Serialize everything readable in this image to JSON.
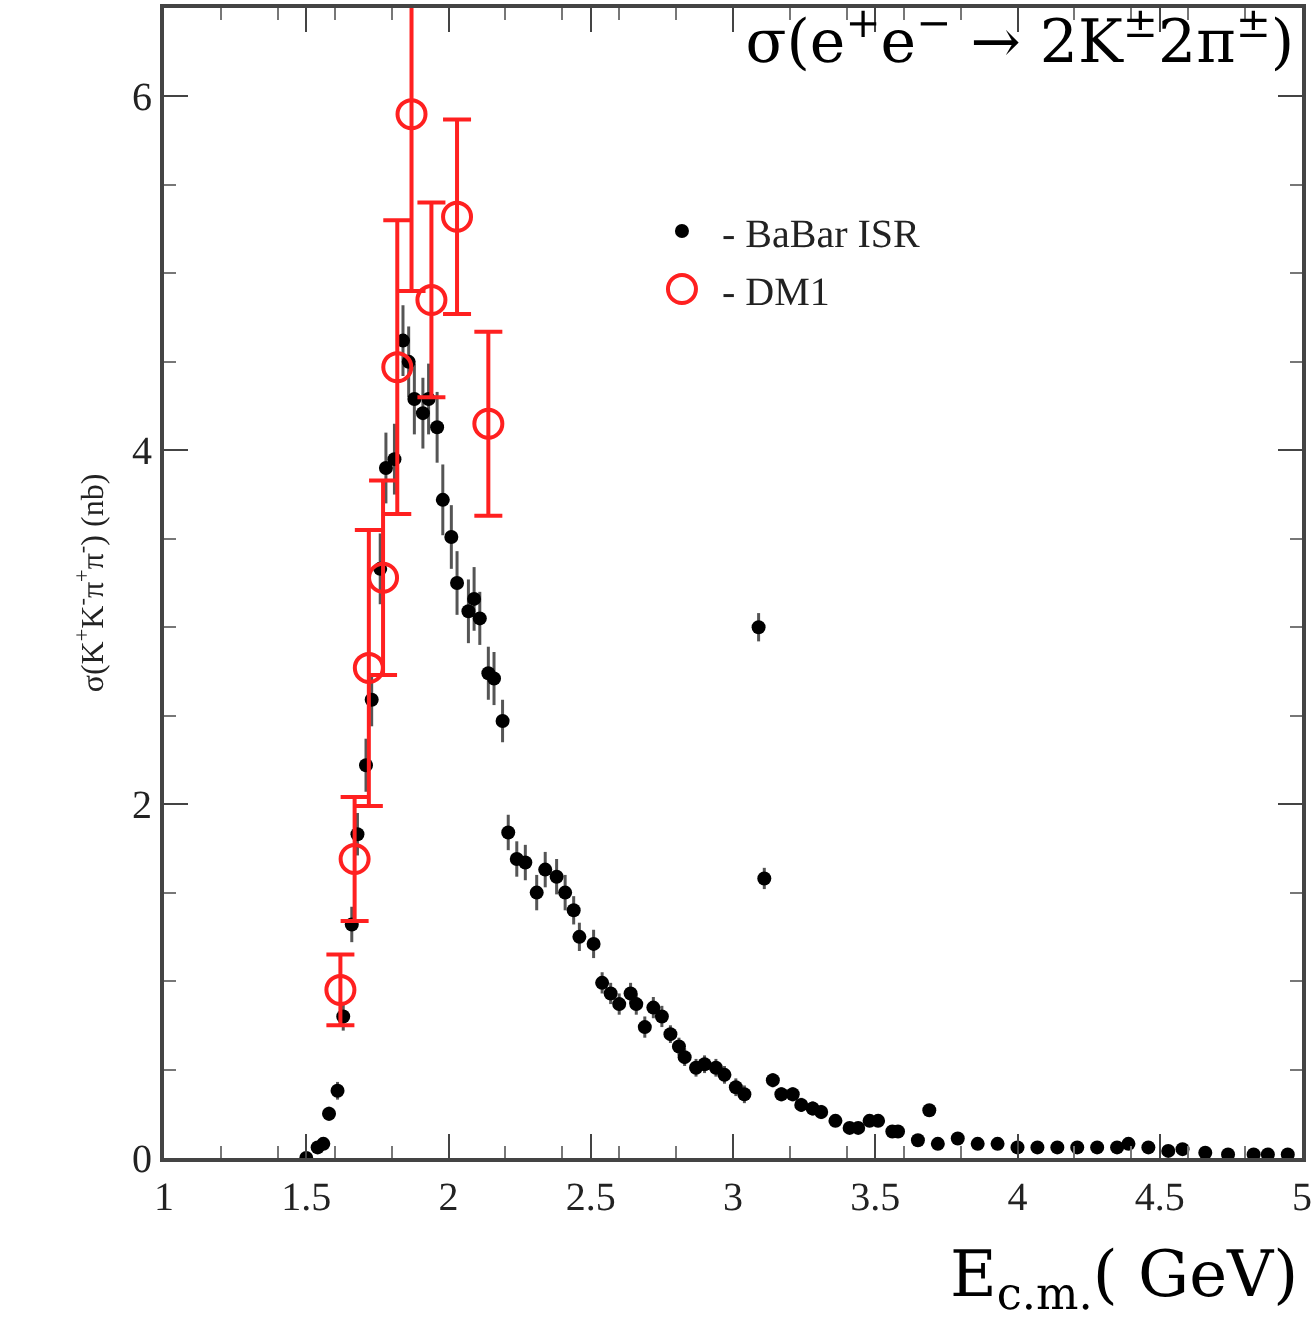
{
  "chart_data": {
    "type": "scatter",
    "title": "σ(e$^{+}$e$^{−}$ → 2K$^{±}$2π$^{±}$)",
    "xlabel": "E$_{c.m.}$( GeV)",
    "ylabel": "σ(K$^{+}$K$^{-}$π$^{+}$π$^{-}$) (nb)",
    "xlim": [
      1,
      5
    ],
    "xticks": [
      1,
      1.5,
      2,
      2.5,
      3,
      3.5,
      4,
      4.5,
      5
    ],
    "ylim": [
      0,
      6.5
    ],
    "yticks": [
      0,
      2,
      4,
      6
    ],
    "grid": false,
    "legend": "top right",
    "marker": "circle",
    "series": [
      {
        "name": "- BaBar ISR",
        "color": "#000000",
        "x": [
          1.5,
          1.54,
          1.56,
          1.58,
          1.61,
          1.63,
          1.66,
          1.68,
          1.71,
          1.73,
          1.76,
          1.78,
          1.81,
          1.84,
          1.86,
          1.88,
          1.91,
          1.93,
          1.96,
          1.98,
          2.01,
          2.03,
          2.07,
          2.09,
          2.11,
          2.14,
          2.16,
          2.19,
          2.21,
          2.24,
          2.27,
          2.31,
          2.34,
          2.38,
          2.41,
          2.44,
          2.46,
          2.51,
          2.54,
          2.57,
          2.6,
          2.64,
          2.66,
          2.69,
          2.72,
          2.75,
          2.78,
          2.81,
          2.83,
          2.87,
          2.9,
          2.94,
          2.97,
          3.01,
          3.04,
          3.09,
          3.11,
          3.14,
          3.17,
          3.21,
          3.24,
          3.28,
          3.31,
          3.36,
          3.41,
          3.44,
          3.48,
          3.51,
          3.56,
          3.58,
          3.65,
          3.69,
          3.72,
          3.79,
          3.86,
          3.93,
          4.0,
          4.07,
          4.14,
          4.21,
          4.28,
          4.35,
          4.39,
          4.46,
          4.53,
          4.58,
          4.66,
          4.74,
          4.83,
          4.88,
          4.95
        ],
        "values": [
          0,
          0.06,
          0.08,
          0.25,
          0.38,
          0.8,
          1.32,
          1.83,
          2.22,
          2.59,
          3.33,
          3.9,
          3.95,
          4.62,
          4.5,
          4.29,
          4.21,
          4.29,
          4.13,
          3.72,
          3.51,
          3.25,
          3.09,
          3.16,
          3.05,
          2.74,
          2.71,
          2.47,
          1.84,
          1.69,
          1.67,
          1.5,
          1.63,
          1.59,
          1.5,
          1.4,
          1.25,
          1.21,
          0.99,
          0.93,
          0.87,
          0.93,
          0.87,
          0.74,
          0.85,
          0.8,
          0.7,
          0.63,
          0.57,
          0.51,
          0.53,
          0.51,
          0.47,
          0.4,
          0.36,
          3.0,
          1.58,
          0.44,
          0.36,
          0.36,
          0.3,
          0.28,
          0.26,
          0.21,
          0.17,
          0.17,
          0.21,
          0.21,
          0.15,
          0.15,
          0.1,
          0.27,
          0.08,
          0.11,
          0.08,
          0.08,
          0.06,
          0.06,
          0.06,
          0.06,
          0.06,
          0.06,
          0.08,
          0.06,
          0.04,
          0.05,
          0.03,
          0.02,
          0.02,
          0.02,
          0.02
        ],
        "errors": [
          null,
          null,
          null,
          0.04,
          0.05,
          0.08,
          0.1,
          0.12,
          0.15,
          0.15,
          0.2,
          0.2,
          0.2,
          0.2,
          0.2,
          0.2,
          0.2,
          0.2,
          0.2,
          0.2,
          0.18,
          0.18,
          0.18,
          0.18,
          0.15,
          0.15,
          0.15,
          0.12,
          0.1,
          0.1,
          0.1,
          0.1,
          0.1,
          0.1,
          0.1,
          0.08,
          0.08,
          0.08,
          0.06,
          0.06,
          0.06,
          0.06,
          0.06,
          0.06,
          0.06,
          0.06,
          0.05,
          0.05,
          0.05,
          0.05,
          0.05,
          0.05,
          0.05,
          0.05,
          0.05,
          0.08,
          0.06,
          0.04,
          0.04,
          0.04,
          0.04,
          0.04,
          0.04,
          0.03,
          0.03,
          0.03,
          0.03,
          0.03,
          0.03,
          0.03,
          0.03,
          0.03,
          null,
          null,
          null,
          null,
          null,
          null,
          null,
          null,
          null,
          null,
          null,
          null,
          null,
          null,
          null,
          null,
          null,
          null,
          null
        ]
      },
      {
        "name": "- DM1",
        "color": "#ff2020",
        "x": [
          1.62,
          1.67,
          1.72,
          1.77,
          1.82,
          1.87,
          1.94,
          2.03,
          2.14
        ],
        "values": [
          0.95,
          1.69,
          2.77,
          3.28,
          4.47,
          5.9,
          4.85,
          5.32,
          4.15
        ],
        "errors": [
          0.2,
          0.35,
          0.78,
          0.55,
          0.83,
          1.0,
          0.55,
          0.55,
          0.52
        ]
      }
    ]
  }
}
